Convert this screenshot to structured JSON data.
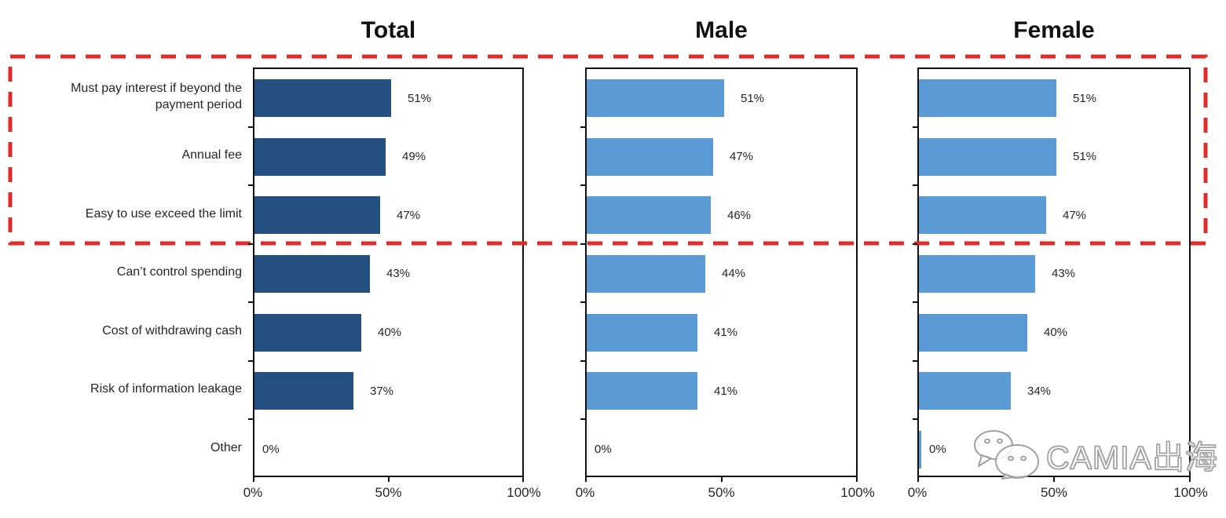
{
  "chart_data": {
    "type": "bar",
    "orientation": "horizontal",
    "title": "",
    "categories": [
      "Must pay interest if beyond the payment period",
      "Annual fee",
      "Easy to use exceed the limit",
      "Can’t control spending",
      "Cost of withdrawing cash",
      "Risk of information leakage",
      "Other"
    ],
    "series": [
      {
        "name": "Total",
        "values": [
          51,
          49,
          47,
          43,
          40,
          37,
          0
        ],
        "color": "#235080",
        "zero_bar_sliver": false
      },
      {
        "name": "Male",
        "values": [
          51,
          47,
          46,
          44,
          41,
          41,
          0
        ],
        "color": "#5B9BD5",
        "zero_bar_sliver": false
      },
      {
        "name": "Female",
        "values": [
          51,
          51,
          47,
          43,
          40,
          34,
          0
        ],
        "color": "#5B9BD5",
        "zero_bar_sliver": true
      }
    ],
    "value_suffix": "%",
    "xlim": [
      0,
      100
    ],
    "x_tick_labels": [
      "0%",
      "50%",
      "100%"
    ],
    "x_tick_values": [
      0,
      50,
      100
    ],
    "grid": false,
    "legend": false
  },
  "highlight": {
    "style": "red-dashed-box",
    "color": "#E02B2B",
    "note": "dashed box spans the top three categories across all three charts",
    "covers_categories": [
      "Must pay interest if beyond the payment period",
      "Annual fee",
      "Easy to use exceed the limit"
    ]
  },
  "watermark": {
    "text": "CAMIA出海",
    "icon": "wechat-logo"
  }
}
